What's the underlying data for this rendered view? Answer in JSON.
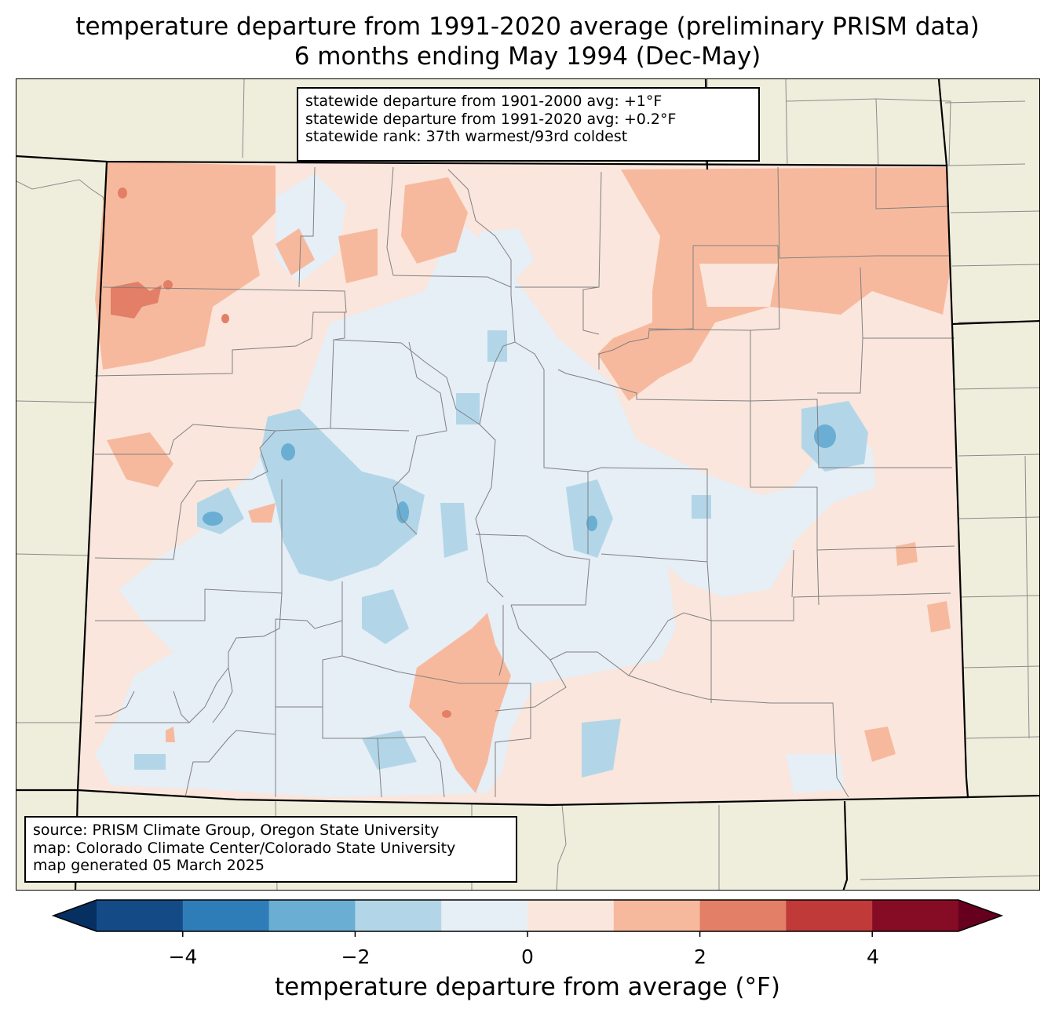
{
  "title": {
    "line1": "temperature departure from 1991-2020 average (preliminary PRISM data)",
    "line2": "6 months ending May 1994 (Dec-May)"
  },
  "stats_box": {
    "line1": "statewide departure from 1901-2000 avg: +1°F",
    "line2": "statewide departure from 1991-2020 avg: +0.2°F",
    "line3": "statewide rank: 37th warmest/93rd coldest"
  },
  "source_box": {
    "line1": "source: PRISM Climate Group, Oregon State University",
    "line2": "map: Colorado Climate Center/Colorado State University",
    "line3": "map generated 05 March 2025"
  },
  "colorbar": {
    "label": "temperature departure from average (°F)",
    "ticks": [
      "−4",
      "−2",
      "0",
      "2",
      "4"
    ],
    "tick_values": [
      -4,
      -2,
      0,
      2,
      4
    ],
    "range": [
      -5,
      5
    ],
    "bin_edges": [
      -5,
      -4,
      -3,
      -2,
      -1,
      0,
      1,
      2,
      3,
      4,
      5
    ],
    "colors": [
      "#144b86",
      "#2f7db8",
      "#6aaed4",
      "#b2d6e8",
      "#e6eef6",
      "#fae6dc",
      "#f7b99d",
      "#e27f66",
      "#c03a39",
      "#860b25"
    ],
    "under_color": "#053061",
    "over_color": "#67001f"
  },
  "map": {
    "region": "Colorado",
    "background_land_color": "#efeedc",
    "boundary_color": "#000000",
    "county_line_color": "#808080"
  }
}
